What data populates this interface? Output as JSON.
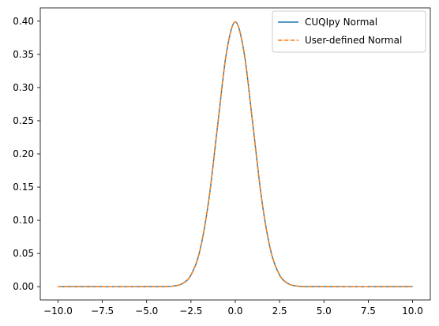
{
  "chart_data": {
    "type": "line",
    "title": "",
    "xlabel": "",
    "ylabel": "",
    "xlim": [
      -11.0,
      11.0
    ],
    "ylim": [
      -0.02,
      0.42
    ],
    "x_ticks": [
      -10.0,
      -7.5,
      -5.0,
      -2.5,
      0.0,
      2.5,
      5.0,
      7.5,
      10.0
    ],
    "x_tick_labels": [
      "−10.0",
      "−7.5",
      "−5.0",
      "−2.5",
      "0.0",
      "2.5",
      "5.0",
      "7.5",
      "10.0"
    ],
    "y_ticks": [
      0.0,
      0.05,
      0.1,
      0.15,
      0.2,
      0.25,
      0.3,
      0.35,
      0.4
    ],
    "y_tick_labels": [
      "0.00",
      "0.05",
      "0.10",
      "0.15",
      "0.20",
      "0.25",
      "0.30",
      "0.35",
      "0.40"
    ],
    "grid": false,
    "legend_position": "top-right",
    "x": [
      -10,
      -5,
      -4,
      -3.5,
      -3,
      -2.5,
      -2,
      -1.5,
      -1,
      -0.5,
      0,
      0.5,
      1,
      1.5,
      2,
      2.5,
      3,
      3.5,
      4,
      5,
      10
    ],
    "series": [
      {
        "name": "CUQIpy Normal",
        "color": "#1f77b4",
        "style": "solid",
        "values": [
          0.0,
          0.0,
          0.0001,
          0.0009,
          0.0044,
          0.0175,
          0.054,
          0.1295,
          0.242,
          0.3521,
          0.3989,
          0.3521,
          0.242,
          0.1295,
          0.054,
          0.0175,
          0.0044,
          0.0009,
          0.0001,
          0.0,
          0.0
        ]
      },
      {
        "name": "User-defined Normal",
        "color": "#ff7f0e",
        "style": "dashed",
        "values": [
          0.0,
          0.0,
          0.0001,
          0.0009,
          0.0044,
          0.0175,
          0.054,
          0.1295,
          0.242,
          0.3521,
          0.3989,
          0.3521,
          0.242,
          0.1295,
          0.054,
          0.0175,
          0.0044,
          0.0009,
          0.0001,
          0.0,
          0.0
        ]
      }
    ]
  }
}
